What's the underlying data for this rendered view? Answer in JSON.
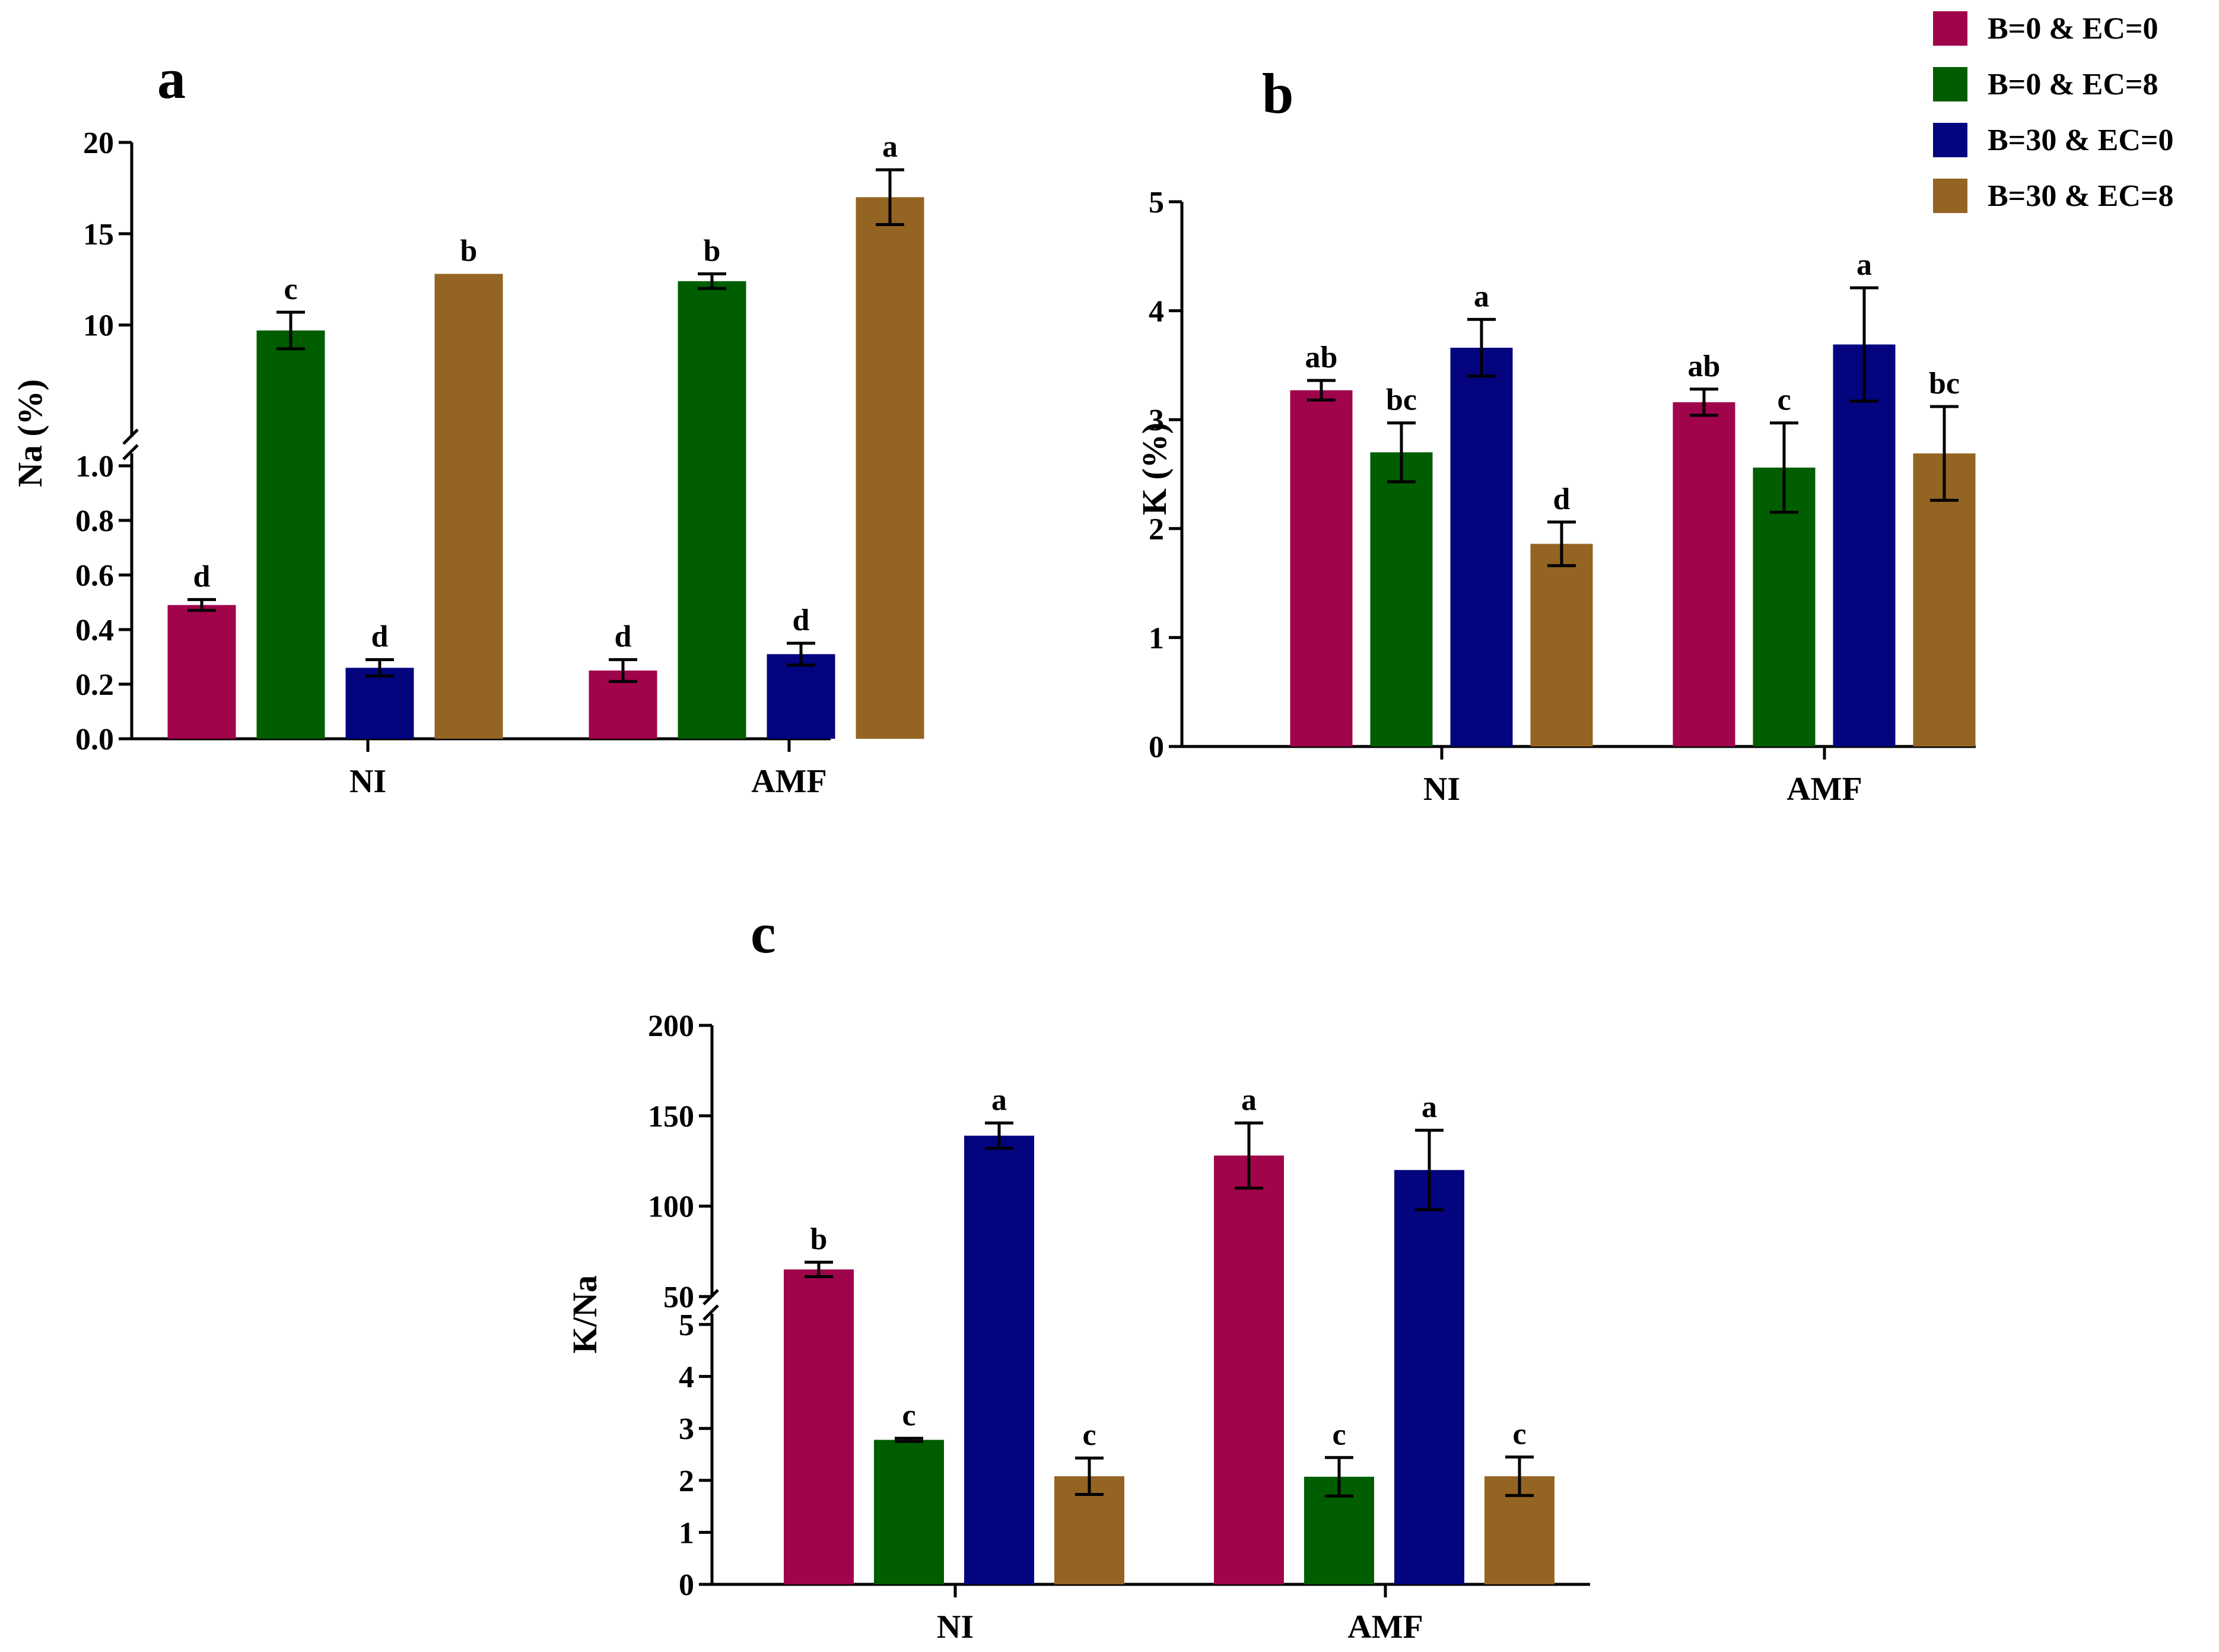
{
  "colors": {
    "B=0 & EC=0": "#a0044b",
    "B=0 & EC=8": "#005d00",
    "B=30 & EC=0": "#04047f",
    "B=30 & EC=8": "#946422"
  },
  "legend": {
    "entries": [
      "B=0 & EC=0",
      "B=0 & EC=8",
      "B=30 & EC=0",
      "B=30 & EC=8"
    ]
  },
  "chart_data": [
    {
      "panel": "a",
      "type": "bar",
      "ylabel": "Na (%)",
      "categories": [
        "NI",
        "AMF"
      ],
      "axis_break": {
        "lower": {
          "range": [
            0,
            1.0
          ],
          "ticks": [
            "0.0",
            "0.2",
            "0.4",
            "0.6",
            "0.8",
            "1.0"
          ]
        },
        "upper": {
          "range": [
            7,
            20
          ],
          "ticks": [
            "10",
            "15",
            "20"
          ]
        }
      },
      "series": [
        {
          "name": "B=0 & EC=0",
          "values": [
            0.49,
            0.25
          ],
          "errors": [
            0.02,
            0.04
          ],
          "letters": [
            "d",
            "d"
          ]
        },
        {
          "name": "B=0 & EC=8",
          "values": [
            9.7,
            12.4
          ],
          "errors": [
            1.0,
            0.4
          ],
          "letters": [
            "c",
            "b"
          ]
        },
        {
          "name": "B=30 & EC=0",
          "values": [
            0.26,
            0.31
          ],
          "errors": [
            0.03,
            0.04
          ],
          "letters": [
            "d",
            "d"
          ]
        },
        {
          "name": "B=30 & EC=8",
          "values": [
            12.8,
            17.0
          ],
          "errors": [
            0,
            1.5
          ],
          "letters": [
            "b",
            "a"
          ]
        }
      ]
    },
    {
      "panel": "b",
      "type": "bar",
      "ylabel": "K (%)",
      "categories": [
        "NI",
        "AMF"
      ],
      "ylim": [
        0,
        5
      ],
      "yticks": [
        "0",
        "1",
        "2",
        "3",
        "4",
        "5"
      ],
      "series": [
        {
          "name": "B=0 & EC=0",
          "values": [
            3.27,
            3.16
          ],
          "errors": [
            0.09,
            0.12
          ],
          "letters": [
            "ab",
            "ab"
          ]
        },
        {
          "name": "B=0 & EC=8",
          "values": [
            2.7,
            2.56
          ],
          "errors": [
            0.27,
            0.41
          ],
          "letters": [
            "bc",
            "c"
          ]
        },
        {
          "name": "B=30 & EC=0",
          "values": [
            3.66,
            3.69
          ],
          "errors": [
            0.26,
            0.52
          ],
          "letters": [
            "a",
            "a"
          ]
        },
        {
          "name": "B=30 & EC=8",
          "values": [
            1.86,
            2.69
          ],
          "errors": [
            0.2,
            0.43
          ],
          "letters": [
            "d",
            "bc"
          ]
        }
      ]
    },
    {
      "panel": "c",
      "type": "bar",
      "ylabel": "K/Na",
      "categories": [
        "NI",
        "AMF"
      ],
      "axis_break": {
        "lower": {
          "range": [
            0,
            5
          ],
          "ticks": [
            "0",
            "1",
            "2",
            "3",
            "4",
            "5"
          ]
        },
        "upper": {
          "range": [
            50,
            200
          ],
          "ticks": [
            "50",
            "100",
            "150",
            "200"
          ]
        }
      },
      "series": [
        {
          "name": "B=0 & EC=0",
          "values": [
            65,
            128
          ],
          "errors": [
            4,
            18
          ],
          "letters": [
            "b",
            "a"
          ]
        },
        {
          "name": "B=0 & EC=8",
          "values": [
            2.78,
            2.07
          ],
          "errors": [
            0.03,
            0.37
          ],
          "letters": [
            "c",
            "c"
          ]
        },
        {
          "name": "B=30 & EC=0",
          "values": [
            139,
            120
          ],
          "errors": [
            7,
            22
          ],
          "letters": [
            "a",
            "a"
          ]
        },
        {
          "name": "B=30 & EC=8",
          "values": [
            2.08,
            2.08
          ],
          "errors": [
            0.35,
            0.37
          ],
          "letters": [
            "c",
            "c"
          ]
        }
      ]
    }
  ]
}
